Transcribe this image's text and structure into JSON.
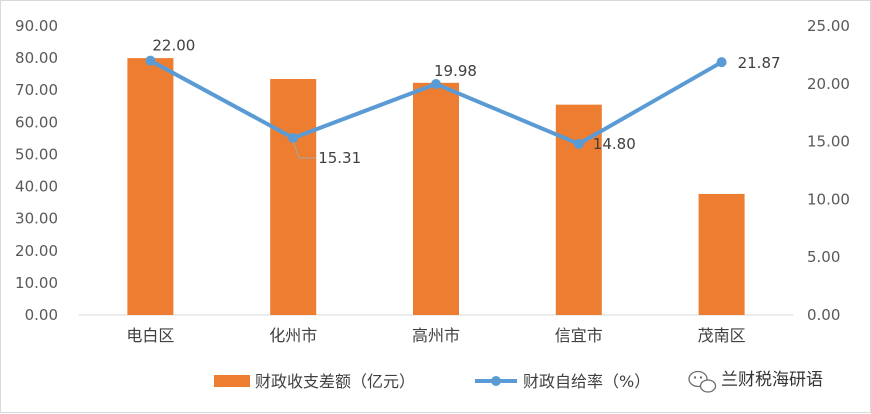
{
  "chart_data": {
    "type": "bar+line",
    "categories": [
      "电白区",
      "化州市",
      "高州市",
      "信宜市",
      "茂南区"
    ],
    "series": [
      {
        "name": "财政收支差额（亿元）",
        "type": "bar",
        "axis": "left",
        "values": [
          80.0,
          73.5,
          72.3,
          65.5,
          37.7
        ]
      },
      {
        "name": "财政自给率（%）",
        "type": "line",
        "axis": "right",
        "values": [
          22.0,
          15.31,
          19.98,
          14.8,
          21.87
        ],
        "labels": [
          "22.00",
          "15.31",
          "19.98",
          "14.80",
          "21.87"
        ]
      }
    ],
    "y_left": {
      "min": 0,
      "max": 90,
      "ticks": [
        "0.00",
        "10.00",
        "20.00",
        "30.00",
        "40.00",
        "50.00",
        "60.00",
        "70.00",
        "80.00",
        "90.00"
      ]
    },
    "y_right": {
      "min": 0,
      "max": 25,
      "ticks": [
        "0.00",
        "5.00",
        "10.00",
        "15.00",
        "20.00",
        "25.00"
      ]
    },
    "grid": false,
    "legend": "bottom",
    "colors": {
      "bar": "#ed7d31",
      "line": "#5b9bd5"
    }
  },
  "watermark": {
    "text": "兰财税海研语",
    "icon": "wechat-icon"
  }
}
